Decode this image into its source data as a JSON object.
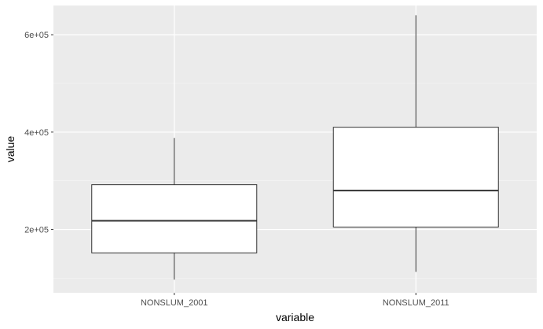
{
  "chart_data": {
    "type": "boxplot",
    "title": "",
    "xlabel": "variable",
    "ylabel": "value",
    "ylim": [
      70000,
      660000
    ],
    "y_ticks": [
      {
        "value": 200000,
        "label": "2e+05"
      },
      {
        "value": 400000,
        "label": "4e+05"
      },
      {
        "value": 600000,
        "label": "6e+05"
      }
    ],
    "y_minor_ticks": [
      100000,
      300000,
      500000
    ],
    "categories": [
      "NONSLUM_2001",
      "NONSLUM_2011"
    ],
    "boxes": [
      {
        "category": "NONSLUM_2001",
        "min": 97000,
        "q1": 152000,
        "median": 218000,
        "q3": 292000,
        "max": 388000
      },
      {
        "category": "NONSLUM_2011",
        "min": 113000,
        "q1": 205000,
        "median": 280000,
        "q3": 410000,
        "max": 640000
      }
    ],
    "grid": true,
    "legend": "none",
    "colors": {
      "panel": "#ebebeb",
      "grid_major": "#ffffff",
      "grid_minor": "#f5f5f5",
      "box_fill": "#ffffff",
      "box_stroke": "#333333"
    }
  }
}
